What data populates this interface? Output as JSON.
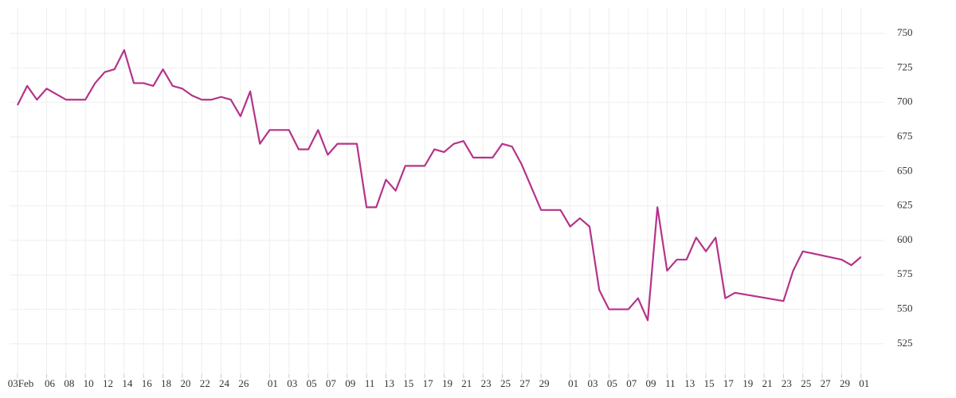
{
  "chart_data": {
    "type": "line",
    "x": [
      0,
      1,
      2,
      3,
      5,
      7,
      8,
      9,
      10,
      11,
      12,
      13,
      14,
      15,
      16,
      17,
      18,
      19,
      20,
      21,
      22,
      23,
      24,
      25,
      26,
      27,
      28,
      29,
      30,
      31,
      32,
      33,
      34,
      35,
      36,
      37,
      38,
      39,
      40,
      41,
      42,
      43,
      44,
      45,
      46,
      47,
      48,
      49,
      50,
      51,
      52,
      54,
      55,
      56,
      57,
      58,
      59,
      60,
      61,
      62,
      63,
      64,
      65,
      66,
      67,
      68,
      69,
      70,
      71,
      72,
      73,
      74,
      79,
      80,
      81,
      85,
      86,
      87
    ],
    "series": [
      {
        "color": "#b5338a",
        "values": [
          698,
          712,
          702,
          710,
          702,
          702,
          714,
          722,
          724,
          738,
          714,
          714,
          712,
          724,
          712,
          710,
          705,
          702,
          702,
          704,
          702,
          690,
          708,
          670,
          680,
          680,
          680,
          666,
          666,
          680,
          662,
          670,
          670,
          670,
          624,
          624,
          644,
          636,
          654,
          654,
          654,
          666,
          664,
          670,
          672,
          660,
          660,
          660,
          670,
          668,
          655,
          622,
          622,
          622,
          610,
          616,
          610,
          564,
          550,
          550,
          550,
          558,
          542,
          624,
          578,
          586,
          586,
          602,
          592,
          602,
          558,
          562,
          556,
          578,
          592,
          586,
          582,
          588
        ]
      }
    ],
    "xlim": [
      -0.82,
      89.4
    ],
    "xticks": [
      {
        "value": 0,
        "label": "03Feb"
      },
      {
        "value": 3,
        "label": "06"
      },
      {
        "value": 5,
        "label": "08"
      },
      {
        "value": 7,
        "label": "10"
      },
      {
        "value": 9,
        "label": "12"
      },
      {
        "value": 11,
        "label": "14"
      },
      {
        "value": 13,
        "label": "16"
      },
      {
        "value": 15,
        "label": "18"
      },
      {
        "value": 17,
        "label": "20"
      },
      {
        "value": 19,
        "label": "22"
      },
      {
        "value": 21,
        "label": "24"
      },
      {
        "value": 23,
        "label": "26"
      },
      {
        "value": 26,
        "label": "01"
      },
      {
        "value": 28,
        "label": "03"
      },
      {
        "value": 30,
        "label": "05"
      },
      {
        "value": 32,
        "label": "07"
      },
      {
        "value": 34,
        "label": "09"
      },
      {
        "value": 36,
        "label": "11"
      },
      {
        "value": 38,
        "label": "13"
      },
      {
        "value": 40,
        "label": "15"
      },
      {
        "value": 42,
        "label": "17"
      },
      {
        "value": 44,
        "label": "19"
      },
      {
        "value": 46,
        "label": "21"
      },
      {
        "value": 48,
        "label": "23"
      },
      {
        "value": 50,
        "label": "25"
      },
      {
        "value": 52,
        "label": "27"
      },
      {
        "value": 54,
        "label": "29"
      },
      {
        "value": 57,
        "label": "01"
      },
      {
        "value": 59,
        "label": "03"
      },
      {
        "value": 61,
        "label": "05"
      },
      {
        "value": 63,
        "label": "07"
      },
      {
        "value": 65,
        "label": "09"
      },
      {
        "value": 67,
        "label": "11"
      },
      {
        "value": 69,
        "label": "13"
      },
      {
        "value": 71,
        "label": "15"
      },
      {
        "value": 73,
        "label": "17"
      },
      {
        "value": 75,
        "label": "19"
      },
      {
        "value": 77,
        "label": "21"
      },
      {
        "value": 79,
        "label": "23"
      },
      {
        "value": 81,
        "label": "25"
      },
      {
        "value": 83,
        "label": "27"
      },
      {
        "value": 85,
        "label": "29"
      },
      {
        "value": 87,
        "label": "01"
      }
    ],
    "ylim": [
      503,
      768.5
    ],
    "yticks": [
      525,
      550,
      575,
      600,
      625,
      650,
      675,
      700,
      725,
      750
    ],
    "grid": true
  }
}
